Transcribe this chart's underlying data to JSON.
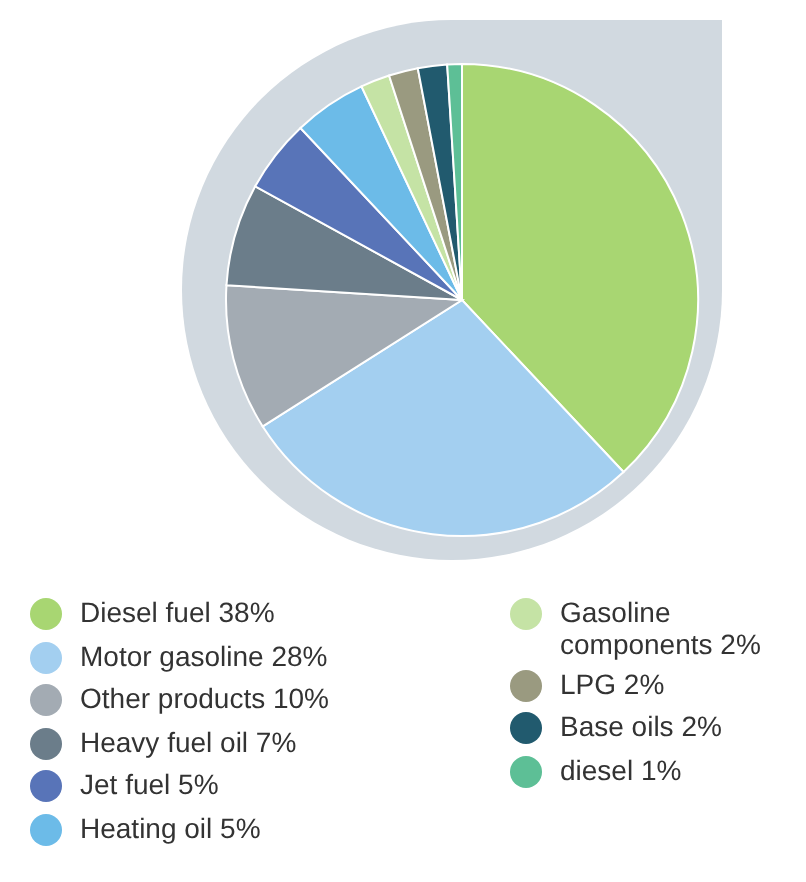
{
  "chart_data": {
    "type": "pie",
    "legend": "bottom",
    "categories": [
      "Diesel fuel 38%",
      "Motor gasoline 28%",
      "Other products 10%",
      "Heavy fuel oil 7%",
      "Jet fuel 5%",
      "Heating oil 5%",
      "Gasoline components 2%",
      "LPG 2%",
      "Base oils 2%",
      "diesel 1%"
    ],
    "values": [
      38,
      28,
      10,
      7,
      5,
      5,
      2,
      2,
      2,
      1
    ],
    "colors": [
      "#a8d672",
      "#a3cff0",
      "#a3abb3",
      "#6b7d8a",
      "#5874b8",
      "#6cbbe8",
      "#c5e3a5",
      "#9a9a80",
      "#215a6e",
      "#5dbf96"
    ]
  }
}
